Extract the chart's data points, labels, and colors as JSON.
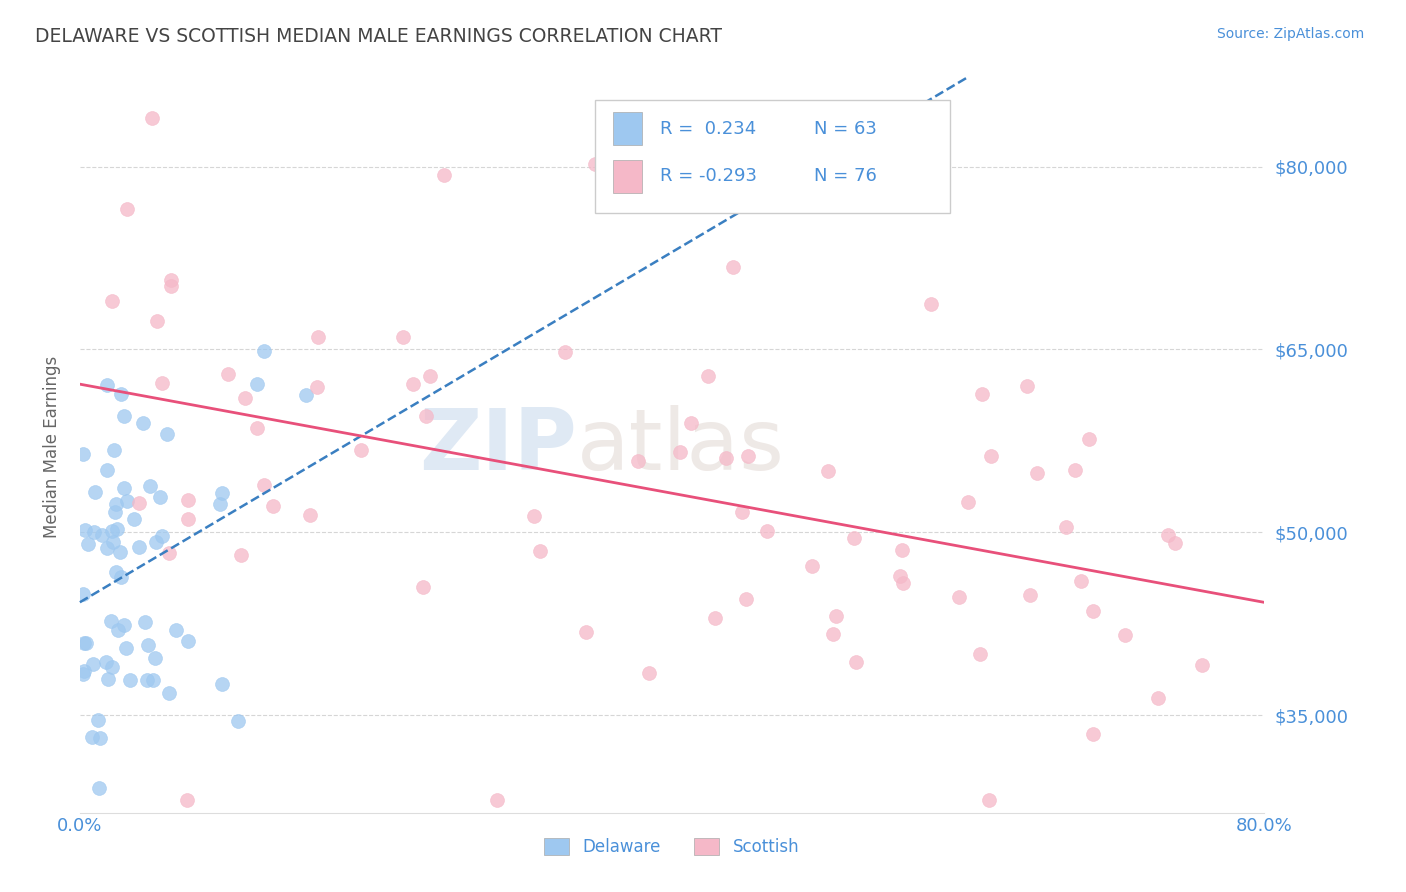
{
  "title": "DELAWARE VS SCOTTISH MEDIAN MALE EARNINGS CORRELATION CHART",
  "source": "Source: ZipAtlas.com",
  "ylabel": "Median Male Earnings",
  "xlim": [
    0.0,
    0.8
  ],
  "ylim": [
    27000,
    87000
  ],
  "yticks": [
    35000,
    50000,
    65000,
    80000
  ],
  "ytick_labels": [
    "$35,000",
    "$50,000",
    "$65,000",
    "$80,000"
  ],
  "xticks": [
    0.0,
    0.8
  ],
  "xtick_labels": [
    "0.0%",
    "80.0%"
  ],
  "delaware_color": "#9ec8f0",
  "scottish_color": "#f5b8c8",
  "delaware_trend_color": "#3a7fc1",
  "scottish_trend_color": "#e8507a",
  "background_color": "#ffffff",
  "grid_color": "#cccccc",
  "title_color": "#444444",
  "axis_label_color": "#4a90d9",
  "R_delaware": 0.234,
  "N_delaware": 63,
  "R_scottish": -0.293,
  "N_scottish": 76,
  "watermark_zip": "ZIP",
  "watermark_atlas": "atlas",
  "legend_R_del": "R =  0.234",
  "legend_N_del": "N = 63",
  "legend_R_sco": "R = -0.293",
  "legend_N_sco": "N = 76"
}
